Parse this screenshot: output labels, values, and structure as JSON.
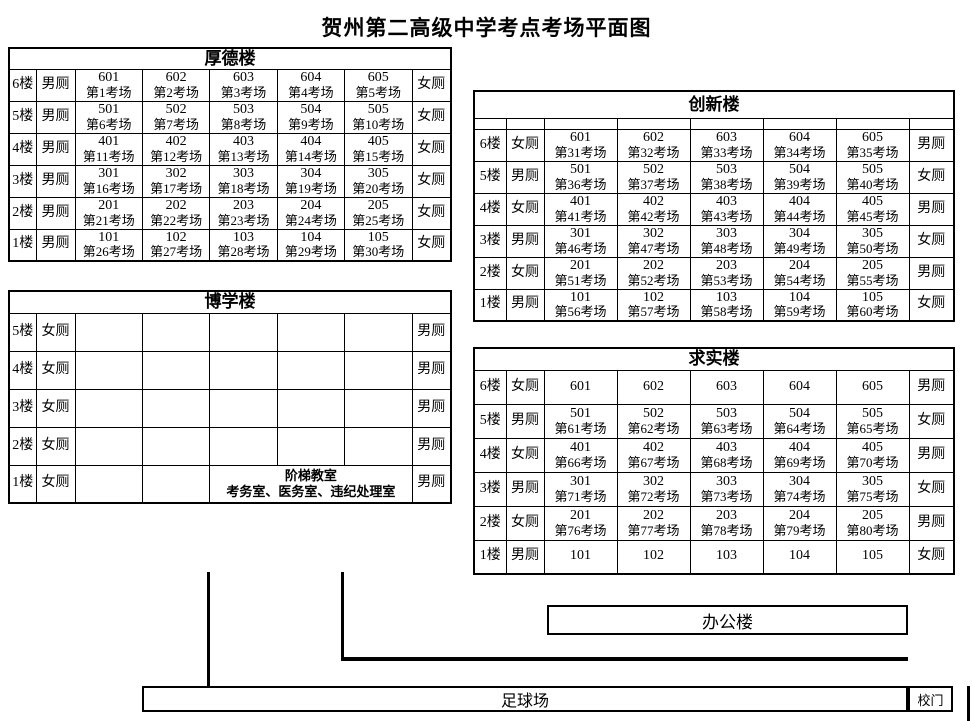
{
  "title": "贺州第二高级中学考点考场平面图",
  "colors": {
    "border": "#000000",
    "background": "#ffffff",
    "text": "#000000"
  },
  "office": {
    "label": "办公楼"
  },
  "field": {
    "label": "足球场"
  },
  "gate": {
    "label": "校门"
  },
  "buildings": {
    "houde": {
      "name": "厚德楼",
      "spacer_row": false,
      "rows": [
        {
          "floor": "6楼",
          "wc_left": "男厕",
          "wc_right": "女厕",
          "cells": [
            [
              "601",
              "第1考场"
            ],
            [
              "602",
              "第2考场"
            ],
            [
              "603",
              "第3考场"
            ],
            [
              "604",
              "第4考场"
            ],
            [
              "605",
              "第5考场"
            ]
          ]
        },
        {
          "floor": "5楼",
          "wc_left": "男厕",
          "wc_right": "女厕",
          "cells": [
            [
              "501",
              "第6考场"
            ],
            [
              "502",
              "第7考场"
            ],
            [
              "503",
              "第8考场"
            ],
            [
              "504",
              "第9考场"
            ],
            [
              "505",
              "第10考场"
            ]
          ]
        },
        {
          "floor": "4楼",
          "wc_left": "男厕",
          "wc_right": "女厕",
          "cells": [
            [
              "401",
              "第11考场"
            ],
            [
              "402",
              "第12考场"
            ],
            [
              "403",
              "第13考场"
            ],
            [
              "404",
              "第14考场"
            ],
            [
              "405",
              "第15考场"
            ]
          ]
        },
        {
          "floor": "3楼",
          "wc_left": "男厕",
          "wc_right": "女厕",
          "cells": [
            [
              "301",
              "第16考场"
            ],
            [
              "302",
              "第17考场"
            ],
            [
              "303",
              "第18考场"
            ],
            [
              "304",
              "第19考场"
            ],
            [
              "305",
              "第20考场"
            ]
          ]
        },
        {
          "floor": "2楼",
          "wc_left": "男厕",
          "wc_right": "女厕",
          "cells": [
            [
              "201",
              "第21考场"
            ],
            [
              "202",
              "第22考场"
            ],
            [
              "203",
              "第23考场"
            ],
            [
              "204",
              "第24考场"
            ],
            [
              "205",
              "第25考场"
            ]
          ]
        },
        {
          "floor": "1楼",
          "wc_left": "男厕",
          "wc_right": "女厕",
          "cells": [
            [
              "101",
              "第26考场"
            ],
            [
              "102",
              "第27考场"
            ],
            [
              "103",
              "第28考场"
            ],
            [
              "104",
              "第29考场"
            ],
            [
              "105",
              "第30考场"
            ]
          ]
        }
      ]
    },
    "boxue": {
      "name": "博学楼",
      "spacer_row": false,
      "rows": [
        {
          "floor": "5楼",
          "wc_left": "女厕",
          "wc_right": "男厕",
          "cells": [
            [
              "",
              ""
            ],
            [
              "",
              ""
            ],
            [
              "",
              ""
            ],
            [
              "",
              ""
            ],
            [
              "",
              ""
            ]
          ]
        },
        {
          "floor": "4楼",
          "wc_left": "女厕",
          "wc_right": "男厕",
          "cells": [
            [
              "",
              ""
            ],
            [
              "",
              ""
            ],
            [
              "",
              ""
            ],
            [
              "",
              ""
            ],
            [
              "",
              ""
            ]
          ]
        },
        {
          "floor": "3楼",
          "wc_left": "女厕",
          "wc_right": "男厕",
          "cells": [
            [
              "",
              ""
            ],
            [
              "",
              ""
            ],
            [
              "",
              ""
            ],
            [
              "",
              ""
            ],
            [
              "",
              ""
            ]
          ]
        },
        {
          "floor": "2楼",
          "wc_left": "女厕",
          "wc_right": "男厕",
          "cells": [
            [
              "",
              ""
            ],
            [
              "",
              ""
            ],
            [
              "",
              ""
            ],
            [
              "",
              ""
            ],
            [
              "",
              ""
            ]
          ]
        },
        {
          "floor": "1楼",
          "wc_left": "女厕",
          "wc_right": "男厕",
          "cells": [
            [
              "",
              ""
            ],
            [
              "",
              ""
            ]
          ],
          "merged": {
            "span": 3,
            "lines": [
              "阶梯教室",
              "考务室、医务室、违纪处理室"
            ]
          }
        }
      ]
    },
    "chuangxin": {
      "name": "创新楼",
      "spacer_row": true,
      "rows": [
        {
          "floor": "6楼",
          "wc_left": "女厕",
          "wc_right": "男厕",
          "cells": [
            [
              "601",
              "第31考场"
            ],
            [
              "602",
              "第32考场"
            ],
            [
              "603",
              "第33考场"
            ],
            [
              "604",
              "第34考场"
            ],
            [
              "605",
              "第35考场"
            ]
          ]
        },
        {
          "floor": "5楼",
          "wc_left": "男厕",
          "wc_right": "女厕",
          "cells": [
            [
              "501",
              "第36考场"
            ],
            [
              "502",
              "第37考场"
            ],
            [
              "503",
              "第38考场"
            ],
            [
              "504",
              "第39考场"
            ],
            [
              "505",
              "第40考场"
            ]
          ]
        },
        {
          "floor": "4楼",
          "wc_left": "女厕",
          "wc_right": "男厕",
          "cells": [
            [
              "401",
              "第41考场"
            ],
            [
              "402",
              "第42考场"
            ],
            [
              "403",
              "第43考场"
            ],
            [
              "404",
              "第44考场"
            ],
            [
              "405",
              "第45考场"
            ]
          ]
        },
        {
          "floor": "3楼",
          "wc_left": "男厕",
          "wc_right": "女厕",
          "cells": [
            [
              "301",
              "第46考场"
            ],
            [
              "302",
              "第47考场"
            ],
            [
              "303",
              "第48考场"
            ],
            [
              "304",
              "第49考场"
            ],
            [
              "305",
              "第50考场"
            ]
          ]
        },
        {
          "floor": "2楼",
          "wc_left": "女厕",
          "wc_right": "男厕",
          "cells": [
            [
              "201",
              "第51考场"
            ],
            [
              "202",
              "第52考场"
            ],
            [
              "203",
              "第53考场"
            ],
            [
              "204",
              "第54考场"
            ],
            [
              "205",
              "第55考场"
            ]
          ]
        },
        {
          "floor": "1楼",
          "wc_left": "男厕",
          "wc_right": "女厕",
          "cells": [
            [
              "101",
              "第56考场"
            ],
            [
              "102",
              "第57考场"
            ],
            [
              "103",
              "第58考场"
            ],
            [
              "104",
              "第59考场"
            ],
            [
              "105",
              "第60考场"
            ]
          ]
        }
      ]
    },
    "qiushi": {
      "name": "求实楼",
      "spacer_row": false,
      "rows": [
        {
          "floor": "6楼",
          "wc_left": "女厕",
          "wc_right": "男厕",
          "cells": [
            [
              "601",
              ""
            ],
            [
              "602",
              ""
            ],
            [
              "603",
              ""
            ],
            [
              "604",
              ""
            ],
            [
              "605",
              ""
            ]
          ]
        },
        {
          "floor": "5楼",
          "wc_left": "男厕",
          "wc_right": "女厕",
          "cells": [
            [
              "501",
              "第61考场"
            ],
            [
              "502",
              "第62考场"
            ],
            [
              "503",
              "第63考场"
            ],
            [
              "504",
              "第64考场"
            ],
            [
              "505",
              "第65考场"
            ]
          ]
        },
        {
          "floor": "4楼",
          "wc_left": "女厕",
          "wc_right": "男厕",
          "cells": [
            [
              "401",
              "第66考场"
            ],
            [
              "402",
              "第67考场"
            ],
            [
              "403",
              "第68考场"
            ],
            [
              "404",
              "第69考场"
            ],
            [
              "405",
              "第70考场"
            ]
          ]
        },
        {
          "floor": "3楼",
          "wc_left": "男厕",
          "wc_right": "女厕",
          "cells": [
            [
              "301",
              "第71考场"
            ],
            [
              "302",
              "第72考场"
            ],
            [
              "303",
              "第73考场"
            ],
            [
              "304",
              "第74考场"
            ],
            [
              "305",
              "第75考场"
            ]
          ]
        },
        {
          "floor": "2楼",
          "wc_left": "女厕",
          "wc_right": "男厕",
          "cells": [
            [
              "201",
              "第76考场"
            ],
            [
              "202",
              "第77考场"
            ],
            [
              "203",
              "第78考场"
            ],
            [
              "204",
              "第79考场"
            ],
            [
              "205",
              "第80考场"
            ]
          ]
        },
        {
          "floor": "1楼",
          "wc_left": "男厕",
          "wc_right": "女厕",
          "cells": [
            [
              "101",
              ""
            ],
            [
              "102",
              ""
            ],
            [
              "103",
              ""
            ],
            [
              "104",
              ""
            ],
            [
              "105",
              ""
            ]
          ]
        }
      ]
    }
  }
}
